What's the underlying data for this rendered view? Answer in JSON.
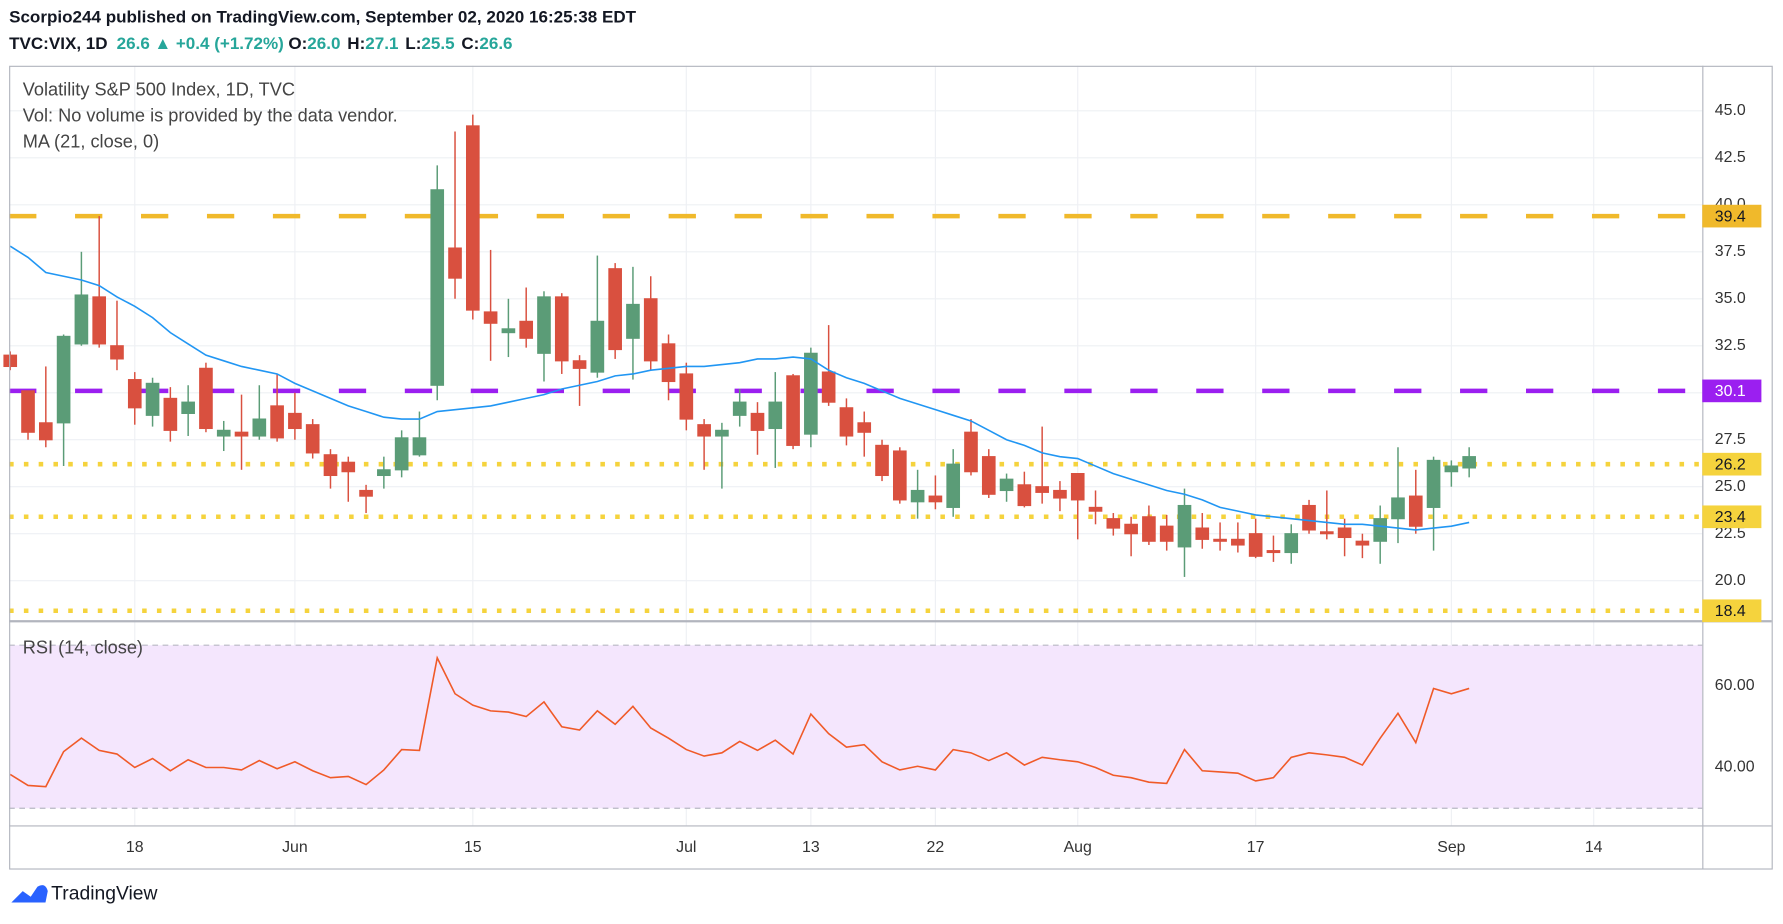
{
  "header": {
    "published": "Scorpio244 published on TradingView.com, September 02, 2020 16:25:38 EDT",
    "symbol": "TVC:VIX, 1D",
    "last": "26.6",
    "change": "+0.4 (+1.72%)",
    "ohlc": [
      {
        "label": "O:",
        "value": "26.0"
      },
      {
        "label": "H:",
        "value": "27.1"
      },
      {
        "label": "L:",
        "value": "25.5"
      },
      {
        "label": "C:",
        "value": "26.6"
      }
    ]
  },
  "chart_data": [
    {
      "type": "candlestick",
      "title": "Volatility S&P 500 Index, 1D, TVC",
      "subtitle": "Vol: No volume is provided by the data vendor.",
      "categories": [
        null,
        null,
        null,
        null,
        null,
        null,
        null,
        "18",
        null,
        null,
        null,
        null,
        null,
        null,
        null,
        null,
        "Jun",
        null,
        null,
        null,
        null,
        null,
        null,
        null,
        null,
        null,
        "15",
        null,
        null,
        null,
        null,
        null,
        null,
        null,
        null,
        null,
        null,
        null,
        "Jul",
        null,
        null,
        null,
        null,
        null,
        null,
        "13",
        null,
        null,
        null,
        null,
        null,
        null,
        "22",
        null,
        null,
        null,
        null,
        null,
        null,
        null,
        "Aug",
        null,
        null,
        null,
        null,
        null,
        null,
        null,
        null,
        null,
        "17",
        null,
        null,
        null,
        null,
        null,
        null,
        null,
        null,
        null,
        null,
        "Sep",
        null,
        null,
        null,
        null,
        null,
        null,
        null,
        "14",
        null,
        null,
        null,
        null,
        null
      ],
      "open": [
        32.0,
        30.1,
        28.4,
        28.4,
        32.6,
        35.1,
        32.5,
        30.7,
        28.8,
        29.7,
        28.9,
        31.3,
        27.7,
        27.9,
        27.7,
        29.3,
        28.9,
        28.3,
        26.7,
        26.3,
        24.8,
        25.6,
        25.9,
        26.7,
        30.4,
        37.7,
        44.2,
        34.3,
        33.2,
        33.8,
        32.1,
        35.1,
        31.7,
        31.1,
        36.6,
        32.9,
        35.0,
        32.6,
        31.0,
        28.3,
        27.7,
        28.8,
        28.9,
        28.1,
        30.9,
        27.8,
        31.1,
        29.2,
        28.4,
        27.2,
        26.9,
        24.2,
        24.5,
        23.9,
        27.9,
        26.6,
        24.8,
        25.1,
        25.0,
        24.8,
        25.7,
        23.9,
        23.3,
        23.0,
        23.4,
        22.9,
        21.8,
        22.8,
        22.2,
        22.2,
        22.5,
        21.6,
        21.5,
        24.0,
        22.6,
        22.8,
        22.1,
        22.1,
        23.3,
        24.5,
        23.9,
        25.8,
        26.0,
        null,
        null,
        null,
        null,
        null,
        null,
        null,
        null,
        null,
        null,
        null,
        null
      ],
      "high": [
        32.2,
        30.1,
        31.4,
        33.1,
        37.5,
        39.4,
        34.9,
        31.1,
        30.8,
        30.3,
        30.4,
        31.6,
        28.5,
        29.9,
        30.4,
        31.0,
        30.0,
        28.6,
        27.0,
        26.6,
        25.1,
        26.6,
        28.0,
        29.0,
        42.1,
        43.9,
        44.8,
        37.6,
        35.0,
        35.6,
        35.4,
        35.3,
        32.0,
        37.3,
        36.9,
        36.7,
        36.2,
        33.1,
        31.6,
        28.6,
        28.4,
        30.2,
        29.5,
        31.1,
        31.0,
        32.4,
        33.6,
        29.7,
        29.0,
        27.5,
        27.1,
        25.9,
        25.6,
        27.0,
        28.6,
        27.0,
        25.7,
        25.8,
        28.2,
        25.3,
        25.7,
        24.8,
        23.6,
        23.4,
        24.0,
        23.5,
        24.9,
        23.6,
        23.1,
        23.1,
        23.3,
        22.4,
        23.0,
        24.3,
        24.8,
        23.3,
        22.5,
        24.0,
        27.1,
        25.9,
        26.6,
        26.4,
        27.1,
        null,
        null,
        null,
        null,
        null,
        null,
        null,
        null,
        null,
        null,
        null,
        null
      ],
      "low": [
        31.2,
        27.5,
        27.1,
        26.1,
        32.5,
        32.4,
        31.2,
        28.3,
        28.2,
        27.4,
        27.7,
        27.9,
        26.9,
        25.9,
        27.5,
        27.4,
        27.5,
        26.5,
        24.9,
        24.2,
        23.6,
        24.9,
        25.5,
        26.6,
        29.6,
        35.0,
        33.9,
        31.7,
        31.9,
        32.4,
        30.6,
        31.0,
        29.3,
        30.8,
        31.8,
        30.7,
        31.2,
        29.6,
        28.0,
        25.9,
        24.9,
        28.2,
        26.7,
        26.0,
        27.0,
        27.1,
        29.3,
        27.2,
        26.6,
        25.3,
        24.1,
        23.3,
        23.8,
        23.4,
        25.6,
        24.4,
        24.2,
        23.9,
        24.1,
        23.7,
        22.2,
        23.0,
        22.4,
        21.3,
        21.9,
        21.6,
        20.2,
        21.7,
        21.6,
        21.5,
        21.2,
        21.0,
        20.9,
        22.5,
        22.2,
        21.3,
        21.2,
        20.9,
        22.0,
        22.5,
        21.6,
        25.0,
        25.5,
        null,
        null,
        null,
        null,
        null,
        null,
        null,
        null,
        null,
        null,
        null,
        null
      ],
      "close": [
        31.4,
        27.9,
        27.5,
        33.0,
        35.2,
        32.6,
        31.8,
        29.2,
        30.5,
        28.0,
        29.5,
        28.1,
        28.0,
        27.7,
        28.6,
        27.6,
        28.1,
        26.8,
        25.6,
        25.8,
        24.5,
        25.9,
        27.6,
        27.6,
        40.8,
        36.1,
        34.4,
        33.7,
        33.4,
        32.9,
        35.1,
        31.7,
        31.3,
        33.8,
        32.3,
        34.7,
        31.7,
        30.6,
        28.6,
        27.7,
        28.0,
        29.5,
        28.0,
        29.5,
        27.2,
        32.1,
        29.5,
        27.7,
        27.9,
        25.6,
        24.3,
        24.8,
        24.2,
        26.2,
        25.8,
        24.6,
        25.4,
        24.0,
        24.7,
        24.4,
        24.3,
        23.7,
        22.8,
        22.5,
        22.1,
        22.1,
        24.0,
        22.2,
        22.1,
        21.9,
        21.3,
        21.5,
        22.5,
        22.7,
        22.5,
        22.3,
        21.9,
        23.3,
        24.4,
        22.9,
        26.4,
        26.1,
        26.6,
        null,
        null,
        null,
        null,
        null,
        null,
        null,
        null,
        null,
        null,
        null,
        null
      ],
      "up_color": "#5b9c77",
      "down_color": "#d9503f",
      "series": [
        {
          "name": "MA (21, close, 0)",
          "color": "#2196f3",
          "values": [
            37.8,
            37.2,
            36.4,
            36.2,
            36.0,
            35.7,
            35.1,
            34.6,
            34.0,
            33.2,
            32.6,
            32.0,
            31.7,
            31.4,
            31.2,
            31.0,
            30.5,
            30.1,
            29.7,
            29.3,
            29.0,
            28.7,
            28.6,
            28.6,
            29.0,
            29.1,
            29.2,
            29.3,
            29.5,
            29.7,
            29.9,
            30.2,
            30.4,
            30.6,
            30.9,
            31.0,
            31.2,
            31.3,
            31.4,
            31.4,
            31.5,
            31.6,
            31.8,
            31.8,
            31.9,
            31.8,
            31.2,
            30.8,
            30.5,
            30.1,
            29.7,
            29.4,
            29.1,
            28.8,
            28.5,
            28.0,
            27.5,
            27.2,
            26.8,
            26.6,
            26.5,
            26.1,
            25.7,
            25.4,
            25.1,
            24.8,
            24.6,
            24.3,
            23.9,
            23.7,
            23.5,
            23.4,
            23.3,
            23.2,
            23.1,
            23.0,
            23.0,
            22.9,
            22.8,
            22.7,
            22.8,
            22.9,
            23.1,
            null,
            null,
            null,
            null,
            null,
            null,
            null,
            null,
            null,
            null,
            null,
            null
          ]
        }
      ],
      "levels": [
        {
          "value": 39.4,
          "color": "#f0b92b",
          "style": "dashed",
          "label_color": "#131722"
        },
        {
          "value": 30.1,
          "color": "#9b1ff0",
          "style": "dashed",
          "label_color": "#ffffff"
        },
        {
          "value": 26.2,
          "color": "#f5d33d",
          "style": "dotted",
          "label_color": "#131722"
        },
        {
          "value": 23.4,
          "color": "#f5d33d",
          "style": "dotted",
          "label_color": "#131722"
        },
        {
          "value": 18.4,
          "color": "#f5d33d",
          "style": "dotted",
          "label_color": "#131722"
        }
      ],
      "ylim": [
        17.9,
        47.4
      ],
      "yticks": [
        {
          "value": 20,
          "label": "20.0"
        },
        {
          "value": 22.5,
          "label": "22.5"
        },
        {
          "value": 25,
          "label": "25.0"
        },
        {
          "value": 27.5,
          "label": "27.5"
        },
        {
          "value": 30,
          "label": "30.0"
        },
        {
          "value": 32.5,
          "label": "32.5"
        },
        {
          "value": 35,
          "label": "35.0"
        },
        {
          "value": 37.5,
          "label": "37.5"
        },
        {
          "value": 40,
          "label": "40.0"
        },
        {
          "value": 42.5,
          "label": "42.5"
        },
        {
          "value": 45,
          "label": "45.0"
        }
      ],
      "grid": true
    },
    {
      "type": "line",
      "title": "RSI (14, close)",
      "series": [
        {
          "color": "#f05a28",
          "values": [
            38.3,
            35.6,
            35.3,
            43.9,
            47.2,
            44.2,
            43.3,
            40.0,
            42.2,
            39.2,
            41.9,
            40.0,
            40.0,
            39.4,
            41.7,
            39.7,
            41.4,
            39.2,
            37.5,
            37.8,
            35.8,
            39.4,
            44.4,
            44.2,
            66.9,
            58.1,
            55.3,
            53.9,
            53.6,
            52.5,
            56.1,
            50.0,
            49.2,
            53.9,
            50.6,
            55.0,
            49.7,
            47.2,
            44.4,
            42.8,
            43.6,
            46.4,
            44.2,
            46.7,
            43.3,
            53.1,
            48.3,
            45.0,
            45.6,
            41.4,
            39.4,
            40.3,
            39.4,
            44.4,
            43.6,
            41.7,
            43.6,
            40.6,
            42.5,
            41.9,
            41.4,
            40.0,
            38.1,
            37.5,
            36.4,
            36.1,
            44.4,
            39.2,
            38.9,
            38.6,
            36.7,
            37.5,
            42.5,
            43.6,
            43.1,
            42.5,
            40.6,
            47.2,
            53.3,
            46.1,
            59.4,
            58.1,
            59.4,
            null,
            null,
            null,
            null,
            null,
            null,
            null,
            null,
            null,
            null,
            null,
            null
          ]
        }
      ],
      "band": [
        30,
        70
      ],
      "band_color": "#f4e6fd",
      "ylim": [
        25.8,
        75.6
      ],
      "yticks": [
        {
          "value": 40,
          "label": "40.00"
        },
        {
          "value": 60,
          "label": "60.00"
        }
      ],
      "grid": true
    }
  ],
  "footer": {
    "brand": "TradingView"
  }
}
